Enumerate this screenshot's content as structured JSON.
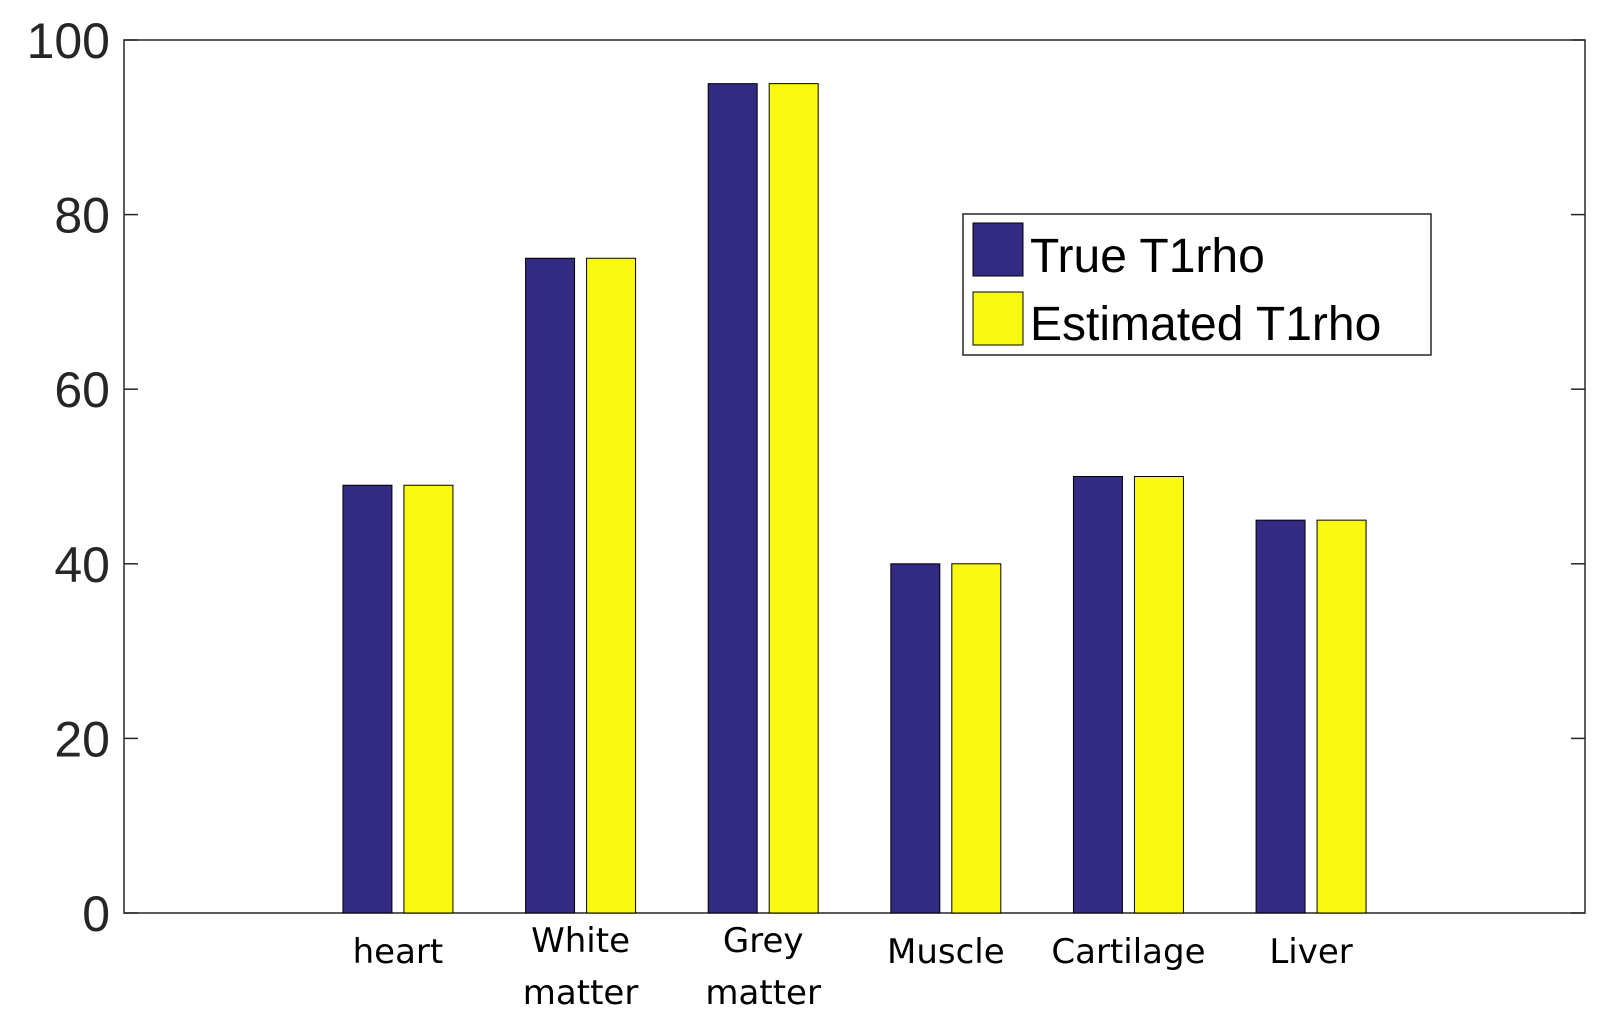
{
  "chart_data": {
    "type": "bar",
    "categories": [
      [
        "heart"
      ],
      [
        "White",
        "matter"
      ],
      [
        "Grey",
        "matter"
      ],
      [
        "Muscle"
      ],
      [
        "Cartilage"
      ],
      [
        "Liver"
      ]
    ],
    "series": [
      {
        "name": "True T1rho",
        "color": "#332a84",
        "values": [
          49,
          75,
          95,
          40,
          50,
          45
        ]
      },
      {
        "name": "Estimated T1rho",
        "color": "#f9f90f",
        "values": [
          49,
          75,
          95,
          40,
          50,
          45
        ]
      }
    ],
    "ylim": [
      0,
      100
    ],
    "yticks": [
      "0",
      "20",
      "40",
      "60",
      "80",
      "100"
    ],
    "legend": {
      "placement": "top-right"
    },
    "grid": false
  }
}
